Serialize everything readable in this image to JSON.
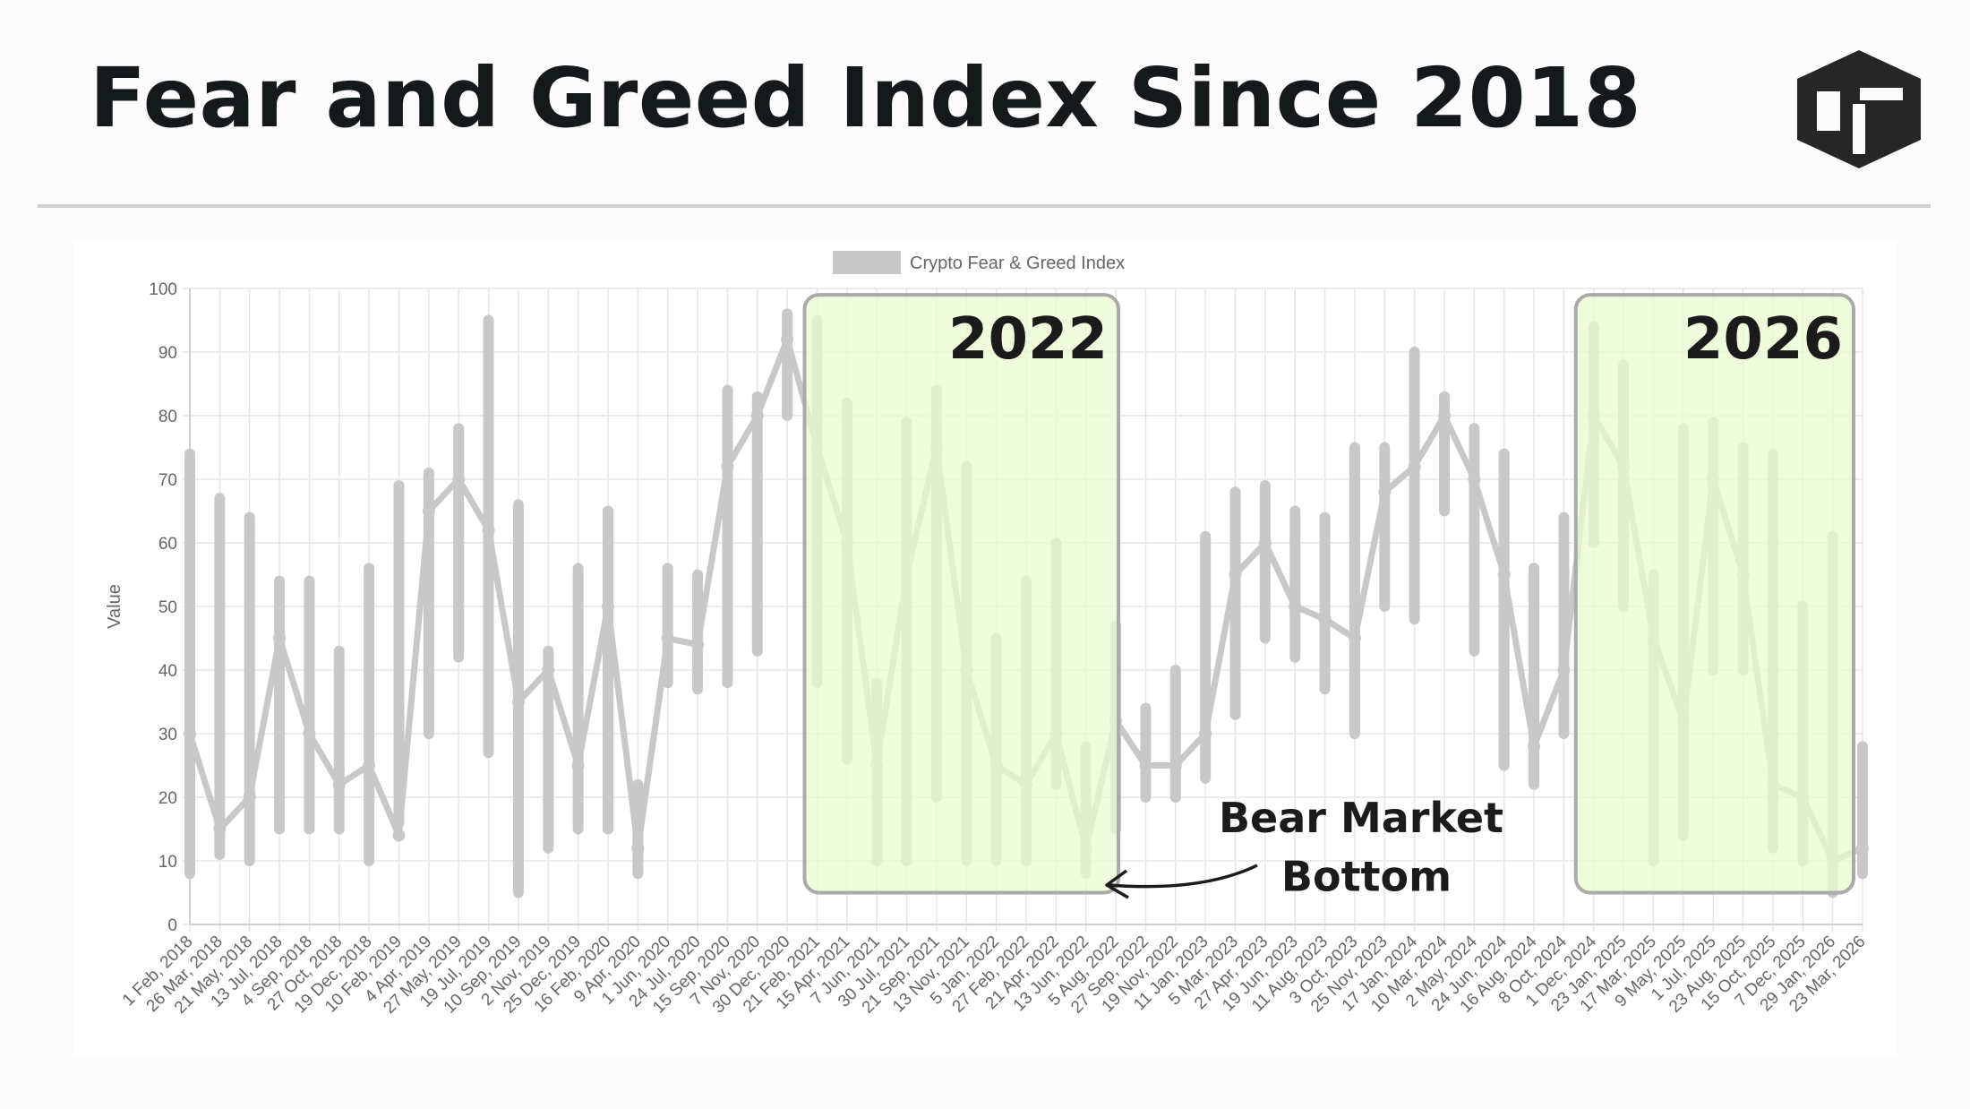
{
  "header": {
    "title": "Fear and Greed Index Since 2018",
    "logo_icon": "hexagon-brand-logo-icon"
  },
  "colors": {
    "title": "#14191c",
    "series": "#c8c8c8",
    "highlight_fill": "#eafcd2",
    "highlight_border": "#aaaaaa",
    "grid": "#e6e6e6",
    "annotation_text": "#1b1b1b"
  },
  "chart_data": {
    "type": "line",
    "title": "",
    "legend": [
      "Crypto Fear & Greed Index"
    ],
    "legend_position": "top-center",
    "ylabel": "Value",
    "xlabel": "",
    "ylim": [
      0,
      100
    ],
    "yticks": [
      0,
      10,
      20,
      30,
      40,
      50,
      60,
      70,
      80,
      90,
      100
    ],
    "grid": true,
    "xticks": [
      "1 Feb, 2018",
      "26 Mar, 2018",
      "21 May, 2018",
      "13 Jul, 2018",
      "4 Sep, 2018",
      "27 Oct, 2018",
      "19 Dec, 2018",
      "10 Feb, 2019",
      "4 Apr, 2019",
      "27 May, 2019",
      "19 Jul, 2019",
      "10 Sep, 2019",
      "2 Nov, 2019",
      "25 Dec, 2019",
      "16 Feb, 2020",
      "9 Apr, 2020",
      "1 Jun, 2020",
      "24 Jul, 2020",
      "15 Sep, 2020",
      "7 Nov, 2020",
      "30 Dec, 2020",
      "21 Feb, 2021",
      "15 Apr, 2021",
      "7 Jun, 2021",
      "30 Jul, 2021",
      "21 Sep, 2021",
      "13 Nov, 2021",
      "5 Jan, 2022",
      "27 Feb, 2022",
      "21 Apr, 2022",
      "13 Jun, 2022",
      "5 Aug, 2022",
      "27 Sep, 2022",
      "19 Nov, 2022",
      "11 Jan, 2023",
      "5 Mar, 2023",
      "27 Apr, 2023",
      "19 Jun, 2023",
      "11 Aug, 2023",
      "3 Oct, 2023",
      "25 Nov, 2023",
      "17 Jan, 2024",
      "10 Mar, 2024",
      "2 May, 2024",
      "24 Jun, 2024",
      "16 Aug, 2024",
      "8 Oct, 2024",
      "1 Dec, 2024",
      "23 Jan, 2025",
      "17 Mar, 2025",
      "9 May, 2025",
      "1 Jul, 2025",
      "23 Aug, 2025",
      "15 Oct, 2025",
      "7 Dec, 2025",
      "29 Jan, 2026",
      "23 Mar, 2026"
    ],
    "series": [
      {
        "name": "Crypto Fear & Greed Index",
        "x": [
          "1 Feb, 2018",
          "26 Mar, 2018",
          "21 May, 2018",
          "13 Jul, 2018",
          "4 Sep, 2018",
          "27 Oct, 2018",
          "19 Dec, 2018",
          "10 Feb, 2019",
          "4 Apr, 2019",
          "27 May, 2019",
          "19 Jul, 2019",
          "10 Sep, 2019",
          "2 Nov, 2019",
          "25 Dec, 2019",
          "16 Feb, 2020",
          "9 Apr, 2020",
          "1 Jun, 2020",
          "24 Jul, 2020",
          "15 Sep, 2020",
          "7 Nov, 2020",
          "30 Dec, 2020",
          "21 Feb, 2021",
          "15 Apr, 2021",
          "7 Jun, 2021",
          "30 Jul, 2021",
          "21 Sep, 2021",
          "13 Nov, 2021",
          "5 Jan, 2022",
          "27 Feb, 2022",
          "21 Apr, 2022",
          "13 Jun, 2022",
          "5 Aug, 2022",
          "27 Sep, 2022",
          "19 Nov, 2022",
          "11 Jan, 2023",
          "5 Mar, 2023",
          "27 Apr, 2023",
          "19 Jun, 2023",
          "11 Aug, 2023",
          "3 Oct, 2023",
          "25 Nov, 2023",
          "17 Jan, 2024",
          "10 Mar, 2024",
          "2 May, 2024",
          "24 Jun, 2024",
          "16 Aug, 2024",
          "8 Oct, 2024",
          "1 Dec, 2024",
          "23 Jan, 2025",
          "17 Mar, 2025",
          "9 May, 2025",
          "1 Jul, 2025",
          "23 Aug, 2025",
          "15 Oct, 2025",
          "7 Dec, 2025",
          "29 Jan, 2026",
          "23 Mar, 2026"
        ],
        "values": [
          30,
          15,
          20,
          45,
          30,
          22,
          25,
          14,
          65,
          70,
          62,
          35,
          40,
          25,
          50,
          12,
          45,
          44,
          72,
          80,
          92,
          75,
          60,
          25,
          55,
          75,
          40,
          25,
          22,
          30,
          12,
          32,
          25,
          25,
          30,
          55,
          60,
          50,
          48,
          45,
          68,
          72,
          80,
          70,
          55,
          28,
          40,
          80,
          72,
          45,
          32,
          70,
          55,
          22,
          20,
          10,
          12
        ],
        "range_low": [
          8,
          11,
          10,
          15,
          15,
          15,
          10,
          16,
          30,
          42,
          27,
          5,
          12,
          15,
          15,
          8,
          38,
          37,
          38,
          43,
          80,
          38,
          26,
          10,
          10,
          20,
          10,
          10,
          10,
          22,
          8,
          15,
          20,
          20,
          23,
          33,
          45,
          42,
          37,
          30,
          50,
          48,
          65,
          43,
          25,
          22,
          30,
          60,
          50,
          10,
          14,
          40,
          40,
          12,
          10,
          5,
          8
        ],
        "range_high": [
          74,
          67,
          64,
          54,
          54,
          43,
          56,
          69,
          71,
          78,
          95,
          66,
          43,
          56,
          65,
          22,
          56,
          55,
          84,
          83,
          96,
          95,
          82,
          38,
          79,
          84,
          72,
          45,
          54,
          60,
          28,
          47,
          34,
          40,
          61,
          68,
          69,
          65,
          64,
          75,
          75,
          90,
          83,
          78,
          74,
          56,
          64,
          94,
          88,
          55,
          78,
          79,
          75,
          74,
          50,
          61,
          28
        ]
      }
    ],
    "annotations": {
      "box_2022_label": "2022",
      "box_2026_label": "2026",
      "arrow_label_line1": "Bear Market",
      "arrow_label_line2": "Bottom"
    }
  }
}
